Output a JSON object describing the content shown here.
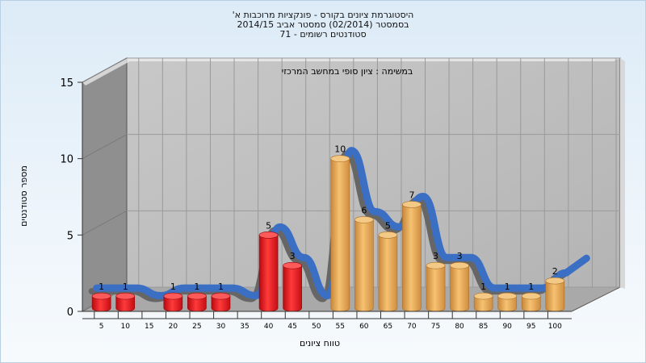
{
  "title_lines": [
    "היסטוגרמת ציונים בקורס - פונקציות מרוכבות א'",
    "בסמסטר  (02/2014)  סמסטר אביב 2014/15",
    "סטודנטים רשומים - 71"
  ],
  "chart_data": {
    "type": "bar",
    "subtitle": "במשימה : ציון סופי במחשב המרכזי",
    "xlabel": "טווח ציונים",
    "ylabel": "מספר סטודנטים",
    "ylim": [
      0,
      15
    ],
    "yticks": [
      0,
      5,
      10,
      15
    ],
    "categories": [
      "5",
      "10",
      "15",
      "20",
      "25",
      "30",
      "35",
      "40",
      "45",
      "50",
      "55",
      "60",
      "65",
      "70",
      "75",
      "80",
      "85",
      "90",
      "95",
      "100"
    ],
    "values": [
      1,
      1,
      0,
      1,
      1,
      1,
      0,
      5,
      3,
      0,
      10,
      6,
      5,
      7,
      3,
      3,
      1,
      1,
      1,
      2
    ],
    "data_labels": [
      "1",
      "1",
      "",
      "1",
      "1",
      "1",
      "",
      "5",
      "3",
      "",
      "10",
      "6",
      "5",
      "7",
      "3",
      "3",
      "1",
      "1",
      "1",
      "2"
    ],
    "bar_colors": {
      "fail": "#e0161e",
      "pass": "#e2a64a"
    },
    "pass_from_index": 10,
    "curve_color": "#3a6fc4",
    "grid": true,
    "style": "3d"
  }
}
